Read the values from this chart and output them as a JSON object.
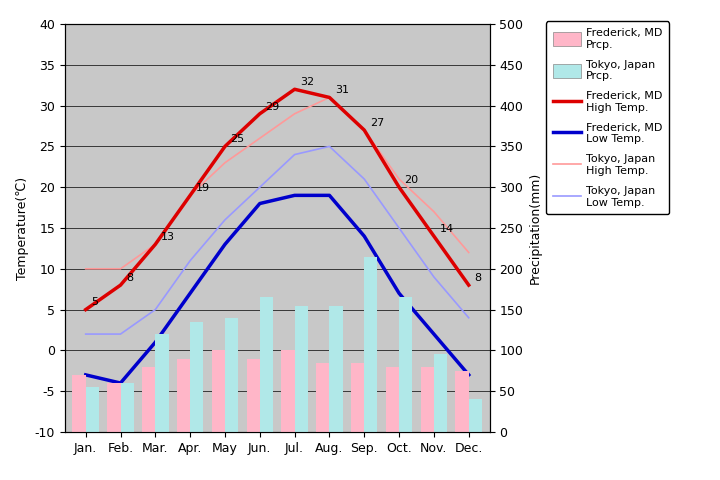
{
  "months": [
    "Jan.",
    "Feb.",
    "Mar.",
    "Apr.",
    "May",
    "Jun.",
    "Jul.",
    "Aug.",
    "Sep.",
    "Oct.",
    "Nov.",
    "Dec."
  ],
  "frederick_high": [
    5,
    8,
    13,
    19,
    25,
    29,
    32,
    31,
    27,
    20,
    14,
    8
  ],
  "frederick_low": [
    -3,
    -4,
    1,
    7,
    13,
    18,
    19,
    19,
    14,
    7,
    2,
    -3
  ],
  "tokyo_high": [
    10,
    10,
    13,
    19,
    23,
    26,
    29,
    31,
    27,
    21,
    17,
    12
  ],
  "tokyo_low": [
    2,
    2,
    5,
    11,
    16,
    20,
    24,
    25,
    21,
    15,
    9,
    4
  ],
  "frederick_prcp_mm": [
    70,
    60,
    80,
    90,
    100,
    90,
    100,
    85,
    85,
    80,
    80,
    75
  ],
  "tokyo_prcp_mm": [
    55,
    60,
    120,
    135,
    140,
    165,
    155,
    155,
    215,
    165,
    95,
    40
  ],
  "title_left": "Temperature(℃)",
  "title_right": "Precipitation(mm)",
  "temp_ylim": [
    -10,
    40
  ],
  "temp_yticks": [
    -10,
    -5,
    0,
    5,
    10,
    15,
    20,
    25,
    30,
    35,
    40
  ],
  "prcp_ylim": [
    0,
    500
  ],
  "prcp_yticks": [
    0,
    50,
    100,
    150,
    200,
    250,
    300,
    350,
    400,
    450,
    500
  ],
  "plot_bg": "#c8c8c8",
  "frederick_high_color": "#dd0000",
  "frederick_low_color": "#0000cc",
  "tokyo_high_color": "#ff9999",
  "tokyo_low_color": "#9999ff",
  "frederick_prcp_color": "#ffb6c8",
  "tokyo_prcp_color": "#b0e8e8",
  "bar_width": 0.38,
  "label_frederick_prcp": "Frederick, MD\nPrcp.",
  "label_tokyo_prcp": "Tokyo, Japan\nPrcp.",
  "label_frederick_high": "Frederick, MD\nHigh Temp.",
  "label_frederick_low": "Frederick, MD\nLow Temp.",
  "label_tokyo_high": "Tokyo, Japan\nHigh Temp.",
  "label_tokyo_low": "Tokyo, Japan\nLow Temp.",
  "high_labels": [
    5,
    8,
    13,
    19,
    25,
    29,
    32,
    31,
    27,
    20,
    14,
    8
  ],
  "grid_color": "black",
  "grid_lw": 0.5
}
